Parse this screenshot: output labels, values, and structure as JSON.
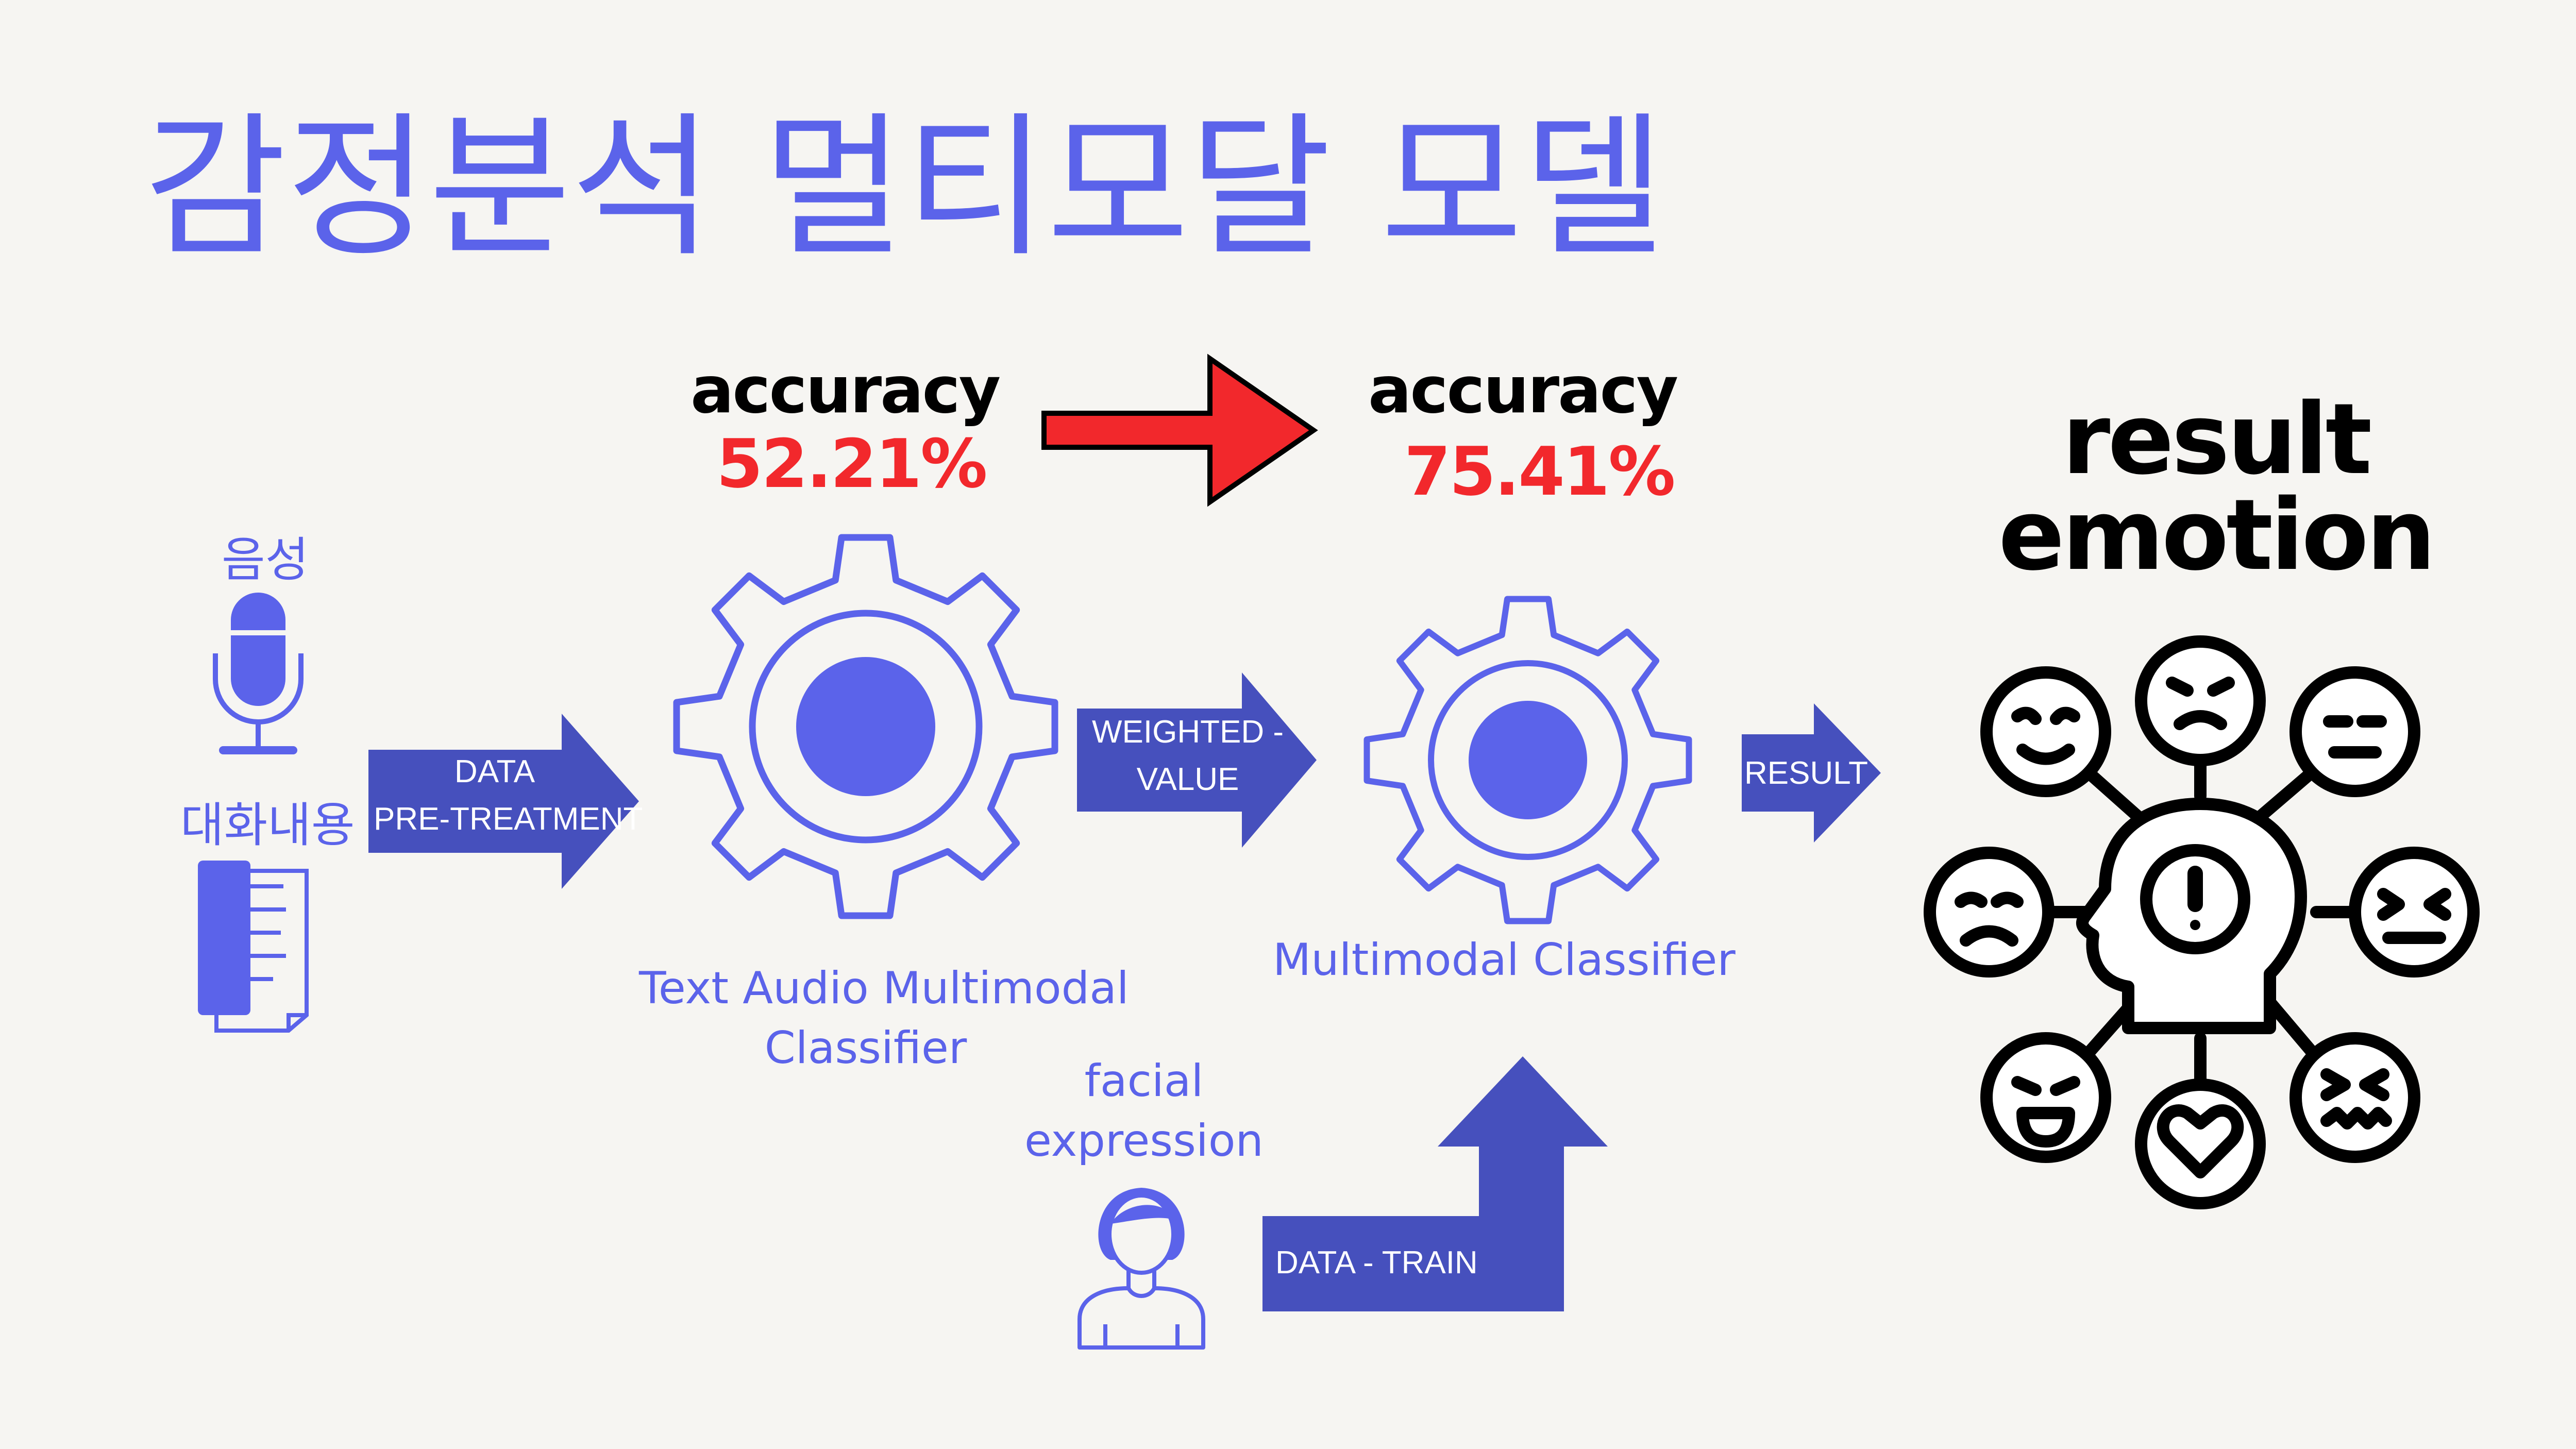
{
  "title": "감정분석 멀티모달 모델",
  "colors": {
    "accent": "#5b63ea",
    "arrow": "#4650bd",
    "highlight": "#f2282c",
    "text_dark": "#000000",
    "background": "#f6f5f2"
  },
  "inputs": {
    "voice_label": "음성",
    "dialogue_label": "대화내용",
    "voice_icon": "microphone-icon",
    "dialogue_icon": "document-icon"
  },
  "arrows": {
    "pretreatment_line1": "DATA",
    "pretreatment_line2": "PRE-TREATMENT",
    "weighted_line1": "WEIGHTED -",
    "weighted_line2": "VALUE",
    "result": "RESULT",
    "train": "DATA - TRAIN"
  },
  "classifier1": {
    "accuracy_label": "accuracy",
    "accuracy_value": "52.21%",
    "name_line1": "Text Audio Multimodal",
    "name_line2": "Classifier",
    "icon": "gear-icon"
  },
  "classifier2": {
    "accuracy_label": "accuracy",
    "accuracy_value": "75.41%",
    "name": "Multimodal Classifier",
    "icon": "gear-icon"
  },
  "facial": {
    "line1": "facial",
    "line2": "expression",
    "icon": "woman-avatar-icon"
  },
  "result": {
    "line1": "result",
    "line2": "emotion",
    "icon": "emotion-head-icon"
  }
}
